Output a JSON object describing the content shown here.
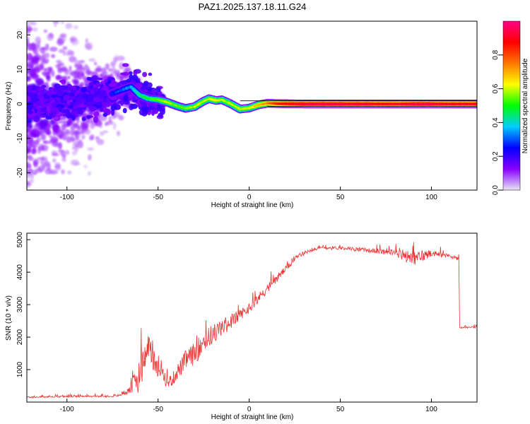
{
  "figure": {
    "title": "PAZ1.2025.137.18.11.G24"
  },
  "chart_data": [
    {
      "type": "heatmap",
      "xlabel": "Height of straight line (km)",
      "ylabel": "Frequency (Hz)",
      "xlim": [
        -122,
        125
      ],
      "ylim": [
        -25,
        24
      ],
      "xticks": [
        "-100",
        "-50",
        "0",
        "50",
        "100"
      ],
      "xtick_values": [
        -100,
        -50,
        0,
        50,
        100
      ],
      "yticks": [
        "-20",
        "-10",
        "0",
        "10",
        "20"
      ],
      "ytick_values": [
        -20,
        -10,
        0,
        10,
        20
      ],
      "colorbar": {
        "label": "Normalized spectral amplitude",
        "range": [
          0,
          1
        ],
        "ticks": [
          "0.0",
          "0.2",
          "0.4",
          "0.6",
          "0.8"
        ],
        "tick_values": [
          0,
          0.2,
          0.4,
          0.6,
          0.8
        ],
        "colors": [
          "#e8e4f4",
          "#8800ff",
          "#0000ff",
          "#00ccff",
          "#00ff00",
          "#ffff00",
          "#ff7700",
          "#ff0000",
          "#ff0088"
        ]
      },
      "ridge": {
        "x": [
          -120,
          -100,
          -80,
          -70,
          -65,
          -60,
          -55,
          -50,
          -45,
          -40,
          -35,
          -30,
          -25,
          -22,
          -18,
          -15,
          -10,
          -5,
          0,
          5,
          10,
          15,
          20,
          30,
          50,
          80,
          90,
          100,
          110,
          125
        ],
        "y": [
          0,
          1,
          2,
          4,
          5,
          2.5,
          1.5,
          1.2,
          0.5,
          -0.5,
          -1.3,
          -0.8,
          0.8,
          1.5,
          1.0,
          1.2,
          0,
          -1.5,
          -1.2,
          -0.3,
          0.2,
          0.1,
          0.05,
          0,
          0,
          0,
          0,
          0,
          0,
          0
        ],
        "amplitude": [
          0.2,
          0.2,
          0.25,
          0.3,
          0.35,
          0.45,
          0.5,
          0.55,
          0.6,
          0.55,
          0.55,
          0.6,
          0.6,
          0.6,
          0.65,
          0.6,
          0.6,
          0.6,
          0.6,
          0.7,
          0.75,
          0.85,
          0.9,
          0.95,
          0.95,
          0.9,
          0.95,
          0.95,
          0.9,
          0.9
        ]
      }
    },
    {
      "type": "line",
      "xlabel": "Height of straight line (km)",
      "ylabel": "SNR (10 * v/v)",
      "xlim": [
        -122,
        125
      ],
      "ylim": [
        0,
        5200
      ],
      "xticks": [
        "-100",
        "-50",
        "0",
        "50",
        "100"
      ],
      "xtick_values": [
        -100,
        -50,
        0,
        50,
        100
      ],
      "yticks": [
        "1000",
        "2000",
        "3000",
        "4000",
        "5000"
      ],
      "ytick_values": [
        1000,
        2000,
        3000,
        4000,
        5000
      ],
      "series": [
        {
          "color": "#ee3333",
          "x": [
            -122,
            -100,
            -80,
            -72,
            -68,
            -64,
            -60,
            -57,
            -55,
            -53,
            -50,
            -47,
            -45,
            -42,
            -40,
            -37,
            -35,
            -32,
            -30,
            -27,
            -25,
            -22,
            -20,
            -17,
            -15,
            -12,
            -10,
            -7,
            -5,
            -2,
            0,
            5,
            10,
            15,
            20,
            25,
            30,
            35,
            40,
            50,
            60,
            70,
            80,
            85,
            90,
            95,
            100,
            110,
            115,
            115.5,
            120,
            125
          ],
          "y": [
            150,
            170,
            180,
            200,
            300,
            500,
            900,
            1400,
            1800,
            1300,
            1000,
            800,
            600,
            700,
            900,
            1100,
            1300,
            1400,
            1500,
            1700,
            1900,
            2000,
            2100,
            2200,
            2300,
            2400,
            2500,
            2600,
            2700,
            2800,
            2900,
            3200,
            3500,
            3800,
            4100,
            4400,
            4600,
            4700,
            4750,
            4750,
            4700,
            4650,
            4600,
            4500,
            4400,
            4500,
            4600,
            4500,
            4400,
            2300,
            2300,
            2300
          ],
          "noise": [
            50,
            50,
            60,
            80,
            200,
            500,
            900,
            900,
            800,
            600,
            500,
            400,
            350,
            400,
            500,
            550,
            600,
            650,
            700,
            700,
            700,
            650,
            600,
            600,
            550,
            500,
            450,
            400,
            350,
            300,
            300,
            300,
            300,
            250,
            200,
            150,
            120,
            100,
            100,
            100,
            120,
            150,
            200,
            350,
            400,
            400,
            200,
            120,
            100,
            60,
            60,
            60
          ]
        }
      ]
    }
  ]
}
